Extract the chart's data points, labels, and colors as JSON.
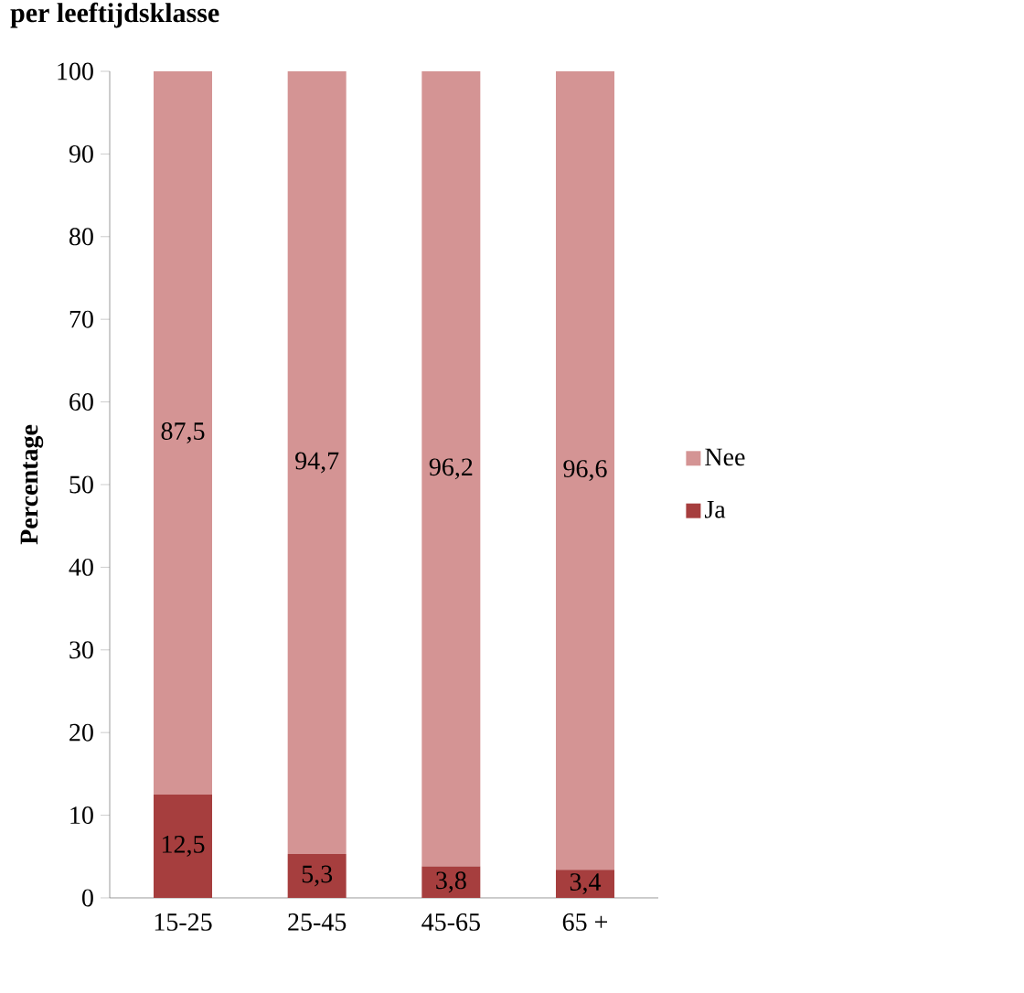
{
  "chart_data": {
    "type": "bar",
    "title": "per leeftijdsklasse",
    "ylabel": "Percentage",
    "categories": [
      "15-25",
      "25-45",
      "45-65",
      "65 +"
    ],
    "series": [
      {
        "name": "Ja",
        "color": "#a63e3e",
        "values": [
          12.5,
          5.3,
          3.8,
          3.4
        ],
        "value_labels": [
          "12,5",
          "5,3",
          "3,8",
          "3,4"
        ]
      },
      {
        "name": "Nee",
        "color": "#d49494",
        "values": [
          87.5,
          94.7,
          96.2,
          96.6
        ],
        "value_labels": [
          "87,5",
          "94,7",
          "96,2",
          "96,6"
        ]
      }
    ],
    "stacked": true,
    "legend": "right",
    "ylim": [
      0,
      100
    ],
    "yticks": [
      0,
      10,
      20,
      30,
      40,
      50,
      60,
      70,
      80,
      90,
      100
    ]
  }
}
